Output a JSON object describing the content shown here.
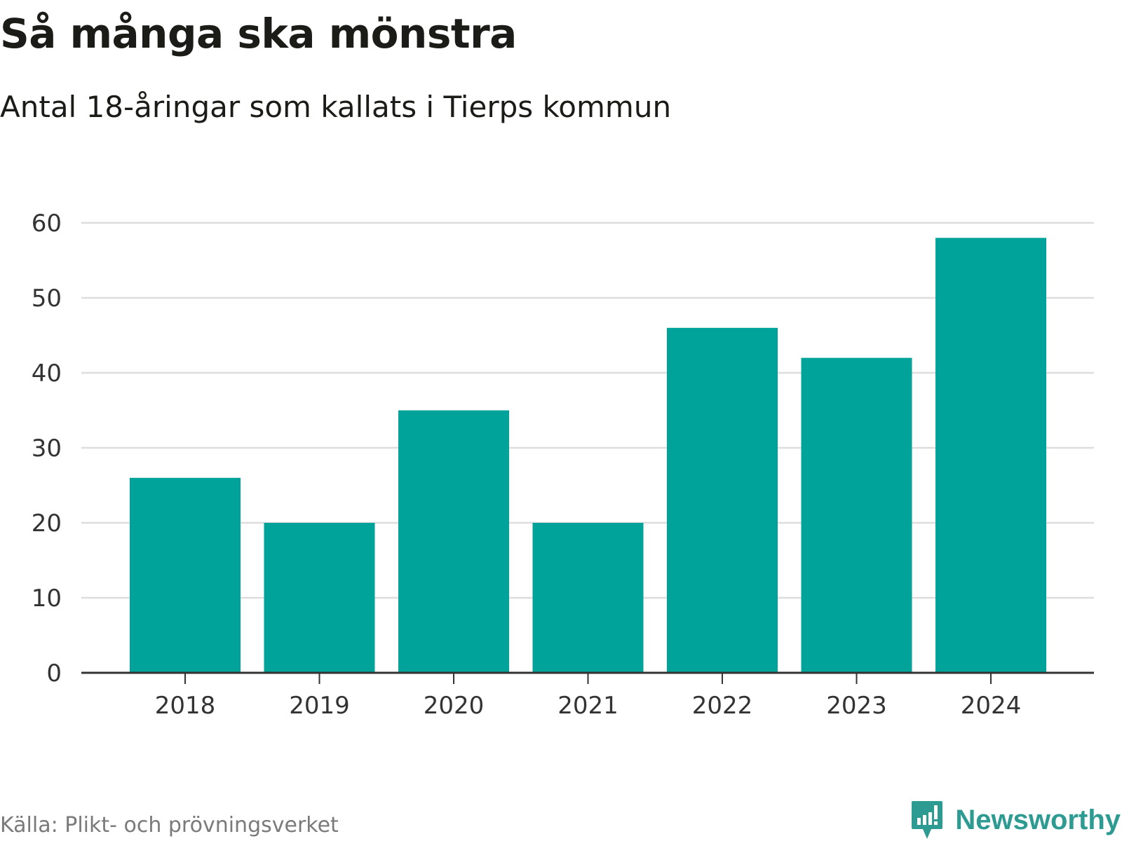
{
  "header": {
    "title": "Så många ska mönstra",
    "subtitle": "Antal 18-åringar som kallats i Tierps kommun"
  },
  "footer": {
    "source": "Källa: Plikt- och prövningsverket",
    "brand": "Newsworthy",
    "brand_icon": "newsworthy-logo-icon"
  },
  "colors": {
    "bar": "#00a39a",
    "grid": "#dddddd",
    "axis": "#333333",
    "tick_text": "#333333",
    "brand": "#2e9b92"
  },
  "chart_data": {
    "type": "bar",
    "title": "Så många ska mönstra",
    "subtitle": "Antal 18-åringar som kallats i Tierps kommun",
    "xlabel": "",
    "ylabel": "",
    "categories": [
      "2018",
      "2019",
      "2020",
      "2021",
      "2022",
      "2023",
      "2024"
    ],
    "values": [
      26,
      20,
      35,
      20,
      46,
      42,
      58
    ],
    "ylim": [
      0,
      60
    ],
    "yticks": [
      0,
      10,
      20,
      30,
      40,
      50,
      60
    ],
    "grid": true,
    "legend": "none"
  }
}
